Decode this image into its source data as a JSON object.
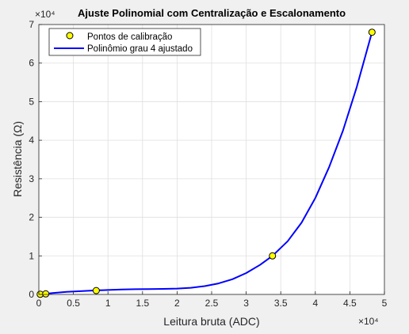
{
  "chart_data": {
    "type": "scatter",
    "title": "Ajuste Polinomial com Centralização e Escalonamento",
    "xlabel": "Leitura bruta (ADC)",
    "ylabel": "Resistência (Ω)",
    "x_exponent_label": "×10⁴",
    "y_exponent_label": "×10⁴",
    "xlim": [
      0,
      50000
    ],
    "ylim": [
      0,
      70000
    ],
    "x_ticks": [
      0,
      5000,
      10000,
      15000,
      20000,
      25000,
      30000,
      35000,
      40000,
      45000,
      50000
    ],
    "x_tick_labels": [
      "0",
      "0.5",
      "1",
      "1.5",
      "2",
      "2.5",
      "3",
      "3.5",
      "4",
      "4.5",
      "5"
    ],
    "y_ticks": [
      0,
      10000,
      20000,
      30000,
      40000,
      50000,
      60000,
      70000
    ],
    "y_tick_labels": [
      "0",
      "1",
      "2",
      "3",
      "4",
      "5",
      "6",
      "7"
    ],
    "grid": true,
    "legend_position": "top-left",
    "series": [
      {
        "name": "Pontos de calibração",
        "kind": "markers",
        "color": "#ffff00",
        "edge_color": "#000000",
        "x": [
          200,
          1000,
          8300,
          33800,
          48200
        ],
        "y": [
          50,
          150,
          1000,
          10000,
          68000
        ]
      },
      {
        "name": "Polinômio grau 4 ajustado",
        "kind": "line",
        "color": "#0000ff",
        "x": [
          200,
          2000,
          4000,
          6000,
          8300,
          10000,
          12000,
          14000,
          16000,
          18000,
          20000,
          22000,
          24000,
          26000,
          28000,
          30000,
          32000,
          33800,
          36000,
          38000,
          40000,
          42000,
          44000,
          46000,
          48200
        ],
        "y": [
          0,
          350,
          650,
          850,
          1050,
          1150,
          1300,
          1350,
          1400,
          1430,
          1520,
          1720,
          2150,
          2850,
          3950,
          5550,
          7650,
          10000,
          13800,
          18600,
          25000,
          33000,
          42500,
          53800,
          68000
        ]
      }
    ]
  }
}
